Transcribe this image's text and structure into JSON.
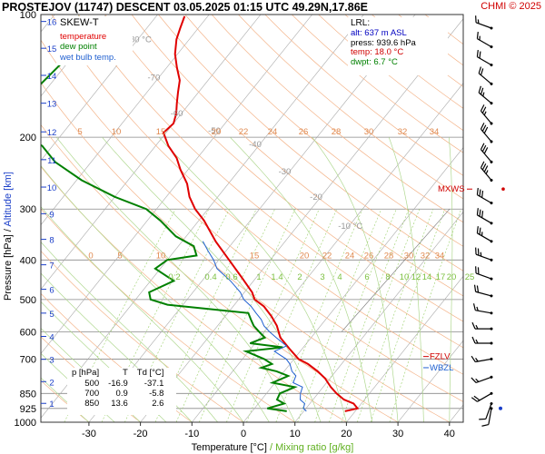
{
  "title": "PROSTEJOV (11747)   DESCENT   03.05.2025 01:15 UTC  49.29N,17.86E",
  "copyright": "CHMI © 2025",
  "legend": {
    "heading": "SKEW-T",
    "items": [
      {
        "label": "temperature",
        "color": "#e00000"
      },
      {
        "label": "dew point",
        "color": "#008000"
      },
      {
        "label": "wet bulb temp.",
        "color": "#2060d0"
      }
    ]
  },
  "lrl": {
    "heading": "LRL:",
    "lines": [
      {
        "text": "alt: 637 m ASL",
        "color": "#0000c0"
      },
      {
        "text": "press: 939.6 hPa",
        "color": "#000000"
      },
      {
        "text": "temp: 18.0 °C",
        "color": "#d00000"
      },
      {
        "text": "dwpt: 6.7 °C",
        "color": "#008000"
      }
    ]
  },
  "levels_table": {
    "headers": [
      "p [hPa]",
      "T",
      "Td [°C]"
    ],
    "rows": [
      [
        "500",
        "-16.9",
        "-37.1"
      ],
      [
        "700",
        "0.9",
        "-5.8"
      ],
      [
        "850",
        "13.6",
        "2.6"
      ]
    ]
  },
  "chart_data": {
    "type": "line",
    "xlabel": "Temperature [°C]",
    "xlabel_sep": "/",
    "xlabel2": "Mixing ratio [g/kg]",
    "ylabel": "Pressure [hPa]",
    "ylabel_sep": "/",
    "ylabel2": "Altitude [km]",
    "xlim": [
      -35,
      45
    ],
    "ylim": [
      1000,
      100
    ],
    "x_ticks": [
      -30,
      -20,
      -10,
      0,
      10,
      20,
      30,
      40
    ],
    "pressure_ticks": [
      100,
      200,
      300,
      400,
      500,
      600,
      700,
      850,
      925,
      1000
    ],
    "altitude_ticks": [
      {
        "km": 16,
        "p": 104
      },
      {
        "km": 15,
        "p": 121
      },
      {
        "km": 14,
        "p": 141
      },
      {
        "km": 13,
        "p": 165
      },
      {
        "km": 12,
        "p": 194
      },
      {
        "km": 11,
        "p": 227
      },
      {
        "km": 10,
        "p": 265
      },
      {
        "km": 9,
        "p": 308
      },
      {
        "km": 8,
        "p": 356
      },
      {
        "km": 7,
        "p": 411
      },
      {
        "km": 6,
        "p": 472
      },
      {
        "km": 5,
        "p": 540
      },
      {
        "km": 4,
        "p": 616
      },
      {
        "km": 3,
        "p": 701
      },
      {
        "km": 2,
        "p": 795
      },
      {
        "km": 1,
        "p": 899
      }
    ],
    "isotherm_labels": [
      {
        "value": "-80 °C",
        "t": -80,
        "p": 115
      },
      {
        "value": "-70",
        "t": -70,
        "p": 143
      },
      {
        "value": "-60",
        "t": -60,
        "p": 175
      },
      {
        "value": "-50",
        "t": -50,
        "p": 193
      },
      {
        "value": "-40",
        "t": -40,
        "p": 208
      },
      {
        "value": "-30",
        "t": -30,
        "p": 243
      },
      {
        "value": "-20",
        "t": -20,
        "p": 280
      },
      {
        "value": "-10 °C",
        "t": -10,
        "p": 330
      }
    ],
    "mixing_ratio_labels": [
      "0.2",
      "0.4",
      "0.6",
      "1",
      "1.4",
      "2",
      "3",
      "4",
      "6",
      "8",
      "10",
      "12",
      "14",
      "17",
      "20",
      "25"
    ],
    "theta_labels_upper": [
      "5",
      "10",
      "15",
      "20",
      "22",
      "24",
      "26",
      "28",
      "30",
      "32",
      "34"
    ],
    "theta_labels_lower": [
      "0",
      "5",
      "10",
      "15",
      "20",
      "22",
      "24",
      "26",
      "28",
      "30",
      "32",
      "34"
    ],
    "markers": [
      {
        "label": "MXWS",
        "p": 268,
        "color": "#d00000"
      },
      {
        "label": "FZLV",
        "p": 690,
        "color": "#d00000"
      },
      {
        "label": "WBZL",
        "p": 735,
        "color": "#2060d0"
      }
    ],
    "series": [
      {
        "name": "temperature",
        "color": "#e00000",
        "points": [
          [
            939.6,
            18.0
          ],
          [
            925,
            20.0
          ],
          [
            900,
            18.5
          ],
          [
            880,
            16.0
          ],
          [
            850,
            13.6
          ],
          [
            820,
            11.5
          ],
          [
            780,
            9.0
          ],
          [
            750,
            6.5
          ],
          [
            720,
            3.5
          ],
          [
            700,
            0.9
          ],
          [
            660,
            -2.5
          ],
          [
            620,
            -6.0
          ],
          [
            580,
            -8.5
          ],
          [
            550,
            -11.0
          ],
          [
            520,
            -14.0
          ],
          [
            500,
            -16.9
          ],
          [
            480,
            -18.5
          ],
          [
            440,
            -23.0
          ],
          [
            400,
            -28.0
          ],
          [
            360,
            -33.5
          ],
          [
            320,
            -39.0
          ],
          [
            300,
            -42.5
          ],
          [
            280,
            -45.5
          ],
          [
            260,
            -48.0
          ],
          [
            240,
            -51.5
          ],
          [
            225,
            -54.0
          ],
          [
            210,
            -57.5
          ],
          [
            195,
            -60.5
          ],
          [
            185,
            -60.0
          ],
          [
            175,
            -61.0
          ],
          [
            165,
            -62.5
          ],
          [
            155,
            -64.0
          ],
          [
            145,
            -65.5
          ],
          [
            135,
            -68.0
          ],
          [
            125,
            -70.5
          ],
          [
            115,
            -72.5
          ],
          [
            108,
            -73.5
          ],
          [
            101,
            -74.5
          ]
        ]
      },
      {
        "name": "dew point",
        "color": "#008000",
        "points": [
          [
            939.6,
            6.7
          ],
          [
            925,
            2.5
          ],
          [
            900,
            5.0
          ],
          [
            880,
            3.0
          ],
          [
            850,
            2.6
          ],
          [
            820,
            4.5
          ],
          [
            800,
            -0.5
          ],
          [
            770,
            1.5
          ],
          [
            750,
            -1.5
          ],
          [
            735,
            -5.0
          ],
          [
            720,
            -3.5
          ],
          [
            700,
            -5.8
          ],
          [
            670,
            -10.5
          ],
          [
            655,
            -4.0
          ],
          [
            640,
            -11.0
          ],
          [
            620,
            -9.0
          ],
          [
            600,
            -11.0
          ],
          [
            580,
            -13.0
          ],
          [
            560,
            -14.5
          ],
          [
            540,
            -16.0
          ],
          [
            515,
            -33.0
          ],
          [
            500,
            -37.1
          ],
          [
            480,
            -38.5
          ],
          [
            450,
            -35.5
          ],
          [
            420,
            -41.0
          ],
          [
            400,
            -40.0
          ],
          [
            390,
            -35.0
          ],
          [
            370,
            -37.0
          ],
          [
            350,
            -42.0
          ],
          [
            320,
            -47.5
          ],
          [
            300,
            -52.0
          ],
          [
            280,
            -60.0
          ],
          [
            255,
            -69.0
          ],
          [
            230,
            -77.0
          ],
          [
            210,
            -82.0
          ],
          [
            195,
            -88.0
          ],
          [
            175,
            -90.0
          ],
          [
            150,
            -92.0
          ],
          [
            130,
            -91.0
          ],
          [
            115,
            -93.0
          ],
          [
            101,
            -95.0
          ]
        ]
      },
      {
        "name": "wet bulb temp.",
        "color": "#2060d0",
        "points": [
          [
            939.6,
            10.5
          ],
          [
            925,
            9.5
          ],
          [
            900,
            9.0
          ],
          [
            880,
            7.5
          ],
          [
            850,
            6.6
          ],
          [
            820,
            6.0
          ],
          [
            800,
            3.5
          ],
          [
            770,
            3.0
          ],
          [
            750,
            1.5
          ],
          [
            720,
            0.0
          ],
          [
            700,
            -1.5
          ],
          [
            670,
            -5.0
          ],
          [
            650,
            -3.5
          ],
          [
            620,
            -6.8
          ],
          [
            600,
            -9.0
          ],
          [
            580,
            -11.0
          ],
          [
            560,
            -12.5
          ],
          [
            540,
            -14.5
          ],
          [
            520,
            -16.5
          ],
          [
            500,
            -19.0
          ],
          [
            480,
            -20.8
          ],
          [
            450,
            -24.5
          ],
          [
            420,
            -29.0
          ],
          [
            400,
            -31.0
          ],
          [
            380,
            -33.5
          ],
          [
            360,
            -36.0
          ]
        ]
      }
    ],
    "wind_barbs": [
      {
        "p": 925,
        "dir": 190,
        "speed": 10
      },
      {
        "p": 900,
        "dir": 200,
        "speed": 10
      },
      {
        "p": 850,
        "dir": 240,
        "speed": 20
      },
      {
        "p": 775,
        "dir": 250,
        "speed": 15
      },
      {
        "p": 700,
        "dir": 260,
        "speed": 15
      },
      {
        "p": 640,
        "dir": 270,
        "speed": 15
      },
      {
        "p": 590,
        "dir": 270,
        "speed": 15
      },
      {
        "p": 540,
        "dir": 280,
        "speed": 15
      },
      {
        "p": 490,
        "dir": 285,
        "speed": 20
      },
      {
        "p": 445,
        "dir": 290,
        "speed": 20
      },
      {
        "p": 400,
        "dir": 290,
        "speed": 25
      },
      {
        "p": 360,
        "dir": 300,
        "speed": 25
      },
      {
        "p": 325,
        "dir": 300,
        "speed": 30
      },
      {
        "p": 290,
        "dir": 300,
        "speed": 30
      },
      {
        "p": 255,
        "dir": 320,
        "speed": 35
      },
      {
        "p": 230,
        "dir": 320,
        "speed": 30
      },
      {
        "p": 205,
        "dir": 320,
        "speed": 30
      },
      {
        "p": 185,
        "dir": 320,
        "speed": 25
      },
      {
        "p": 165,
        "dir": 310,
        "speed": 25
      },
      {
        "p": 148,
        "dir": 310,
        "speed": 20
      },
      {
        "p": 133,
        "dir": 300,
        "speed": 20
      },
      {
        "p": 120,
        "dir": 300,
        "speed": 15
      },
      {
        "p": 108,
        "dir": 290,
        "speed": 15
      }
    ]
  }
}
